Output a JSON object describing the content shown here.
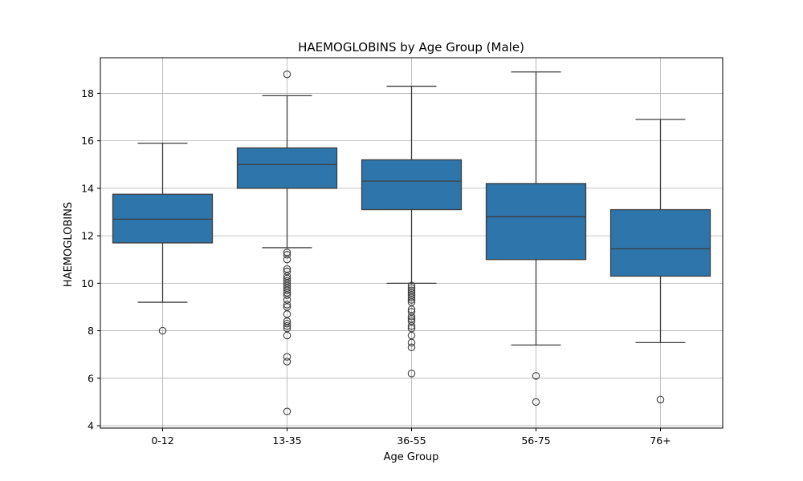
{
  "chart_data": {
    "type": "box",
    "title": "HAEMOGLOBINS by Age Group (Male)",
    "xlabel": "Age Group",
    "ylabel": "HAEMOGLOBINS",
    "ylim": [
      3.9,
      19.5
    ],
    "yticks": [
      4,
      6,
      8,
      10,
      12,
      14,
      16,
      18
    ],
    "grid": true,
    "box_color": "#2e75ab",
    "line_color": "#3d3d3d",
    "categories": [
      "0-12",
      "13-35",
      "36-55",
      "56-75",
      "76+"
    ],
    "boxes": [
      {
        "category": "0-12",
        "whisker_low": 9.2,
        "q1": 11.7,
        "median": 12.7,
        "q3": 13.75,
        "whisker_high": 15.9,
        "outliers": [
          8.0
        ]
      },
      {
        "category": "13-35",
        "whisker_low": 11.5,
        "q1": 14.0,
        "median": 15.0,
        "q3": 15.7,
        "whisker_high": 17.9,
        "outliers": [
          18.8,
          11.3,
          11.2,
          11.0,
          10.6,
          10.5,
          10.3,
          10.2,
          10.1,
          10.0,
          9.9,
          9.8,
          9.7,
          9.6,
          9.5,
          9.3,
          9.1,
          9.0,
          8.7,
          8.4,
          8.3,
          8.2,
          8.1,
          7.8,
          6.9,
          6.7,
          4.6
        ]
      },
      {
        "category": "36-55",
        "whisker_low": 10.0,
        "q1": 13.1,
        "median": 14.3,
        "q3": 15.2,
        "whisker_high": 18.3,
        "outliers": [
          9.9,
          9.8,
          9.7,
          9.6,
          9.5,
          9.4,
          9.3,
          9.2,
          8.9,
          8.8,
          8.6,
          8.5,
          8.4,
          8.2,
          8.1,
          7.8,
          7.5,
          7.3,
          6.2
        ]
      },
      {
        "category": "56-75",
        "whisker_low": 7.4,
        "q1": 11.0,
        "median": 12.8,
        "q3": 14.2,
        "whisker_high": 18.9,
        "outliers": [
          6.1,
          5.0
        ]
      },
      {
        "category": "76+",
        "whisker_low": 7.5,
        "q1": 10.3,
        "median": 11.45,
        "q3": 13.1,
        "whisker_high": 16.9,
        "outliers": [
          5.1
        ]
      }
    ]
  }
}
